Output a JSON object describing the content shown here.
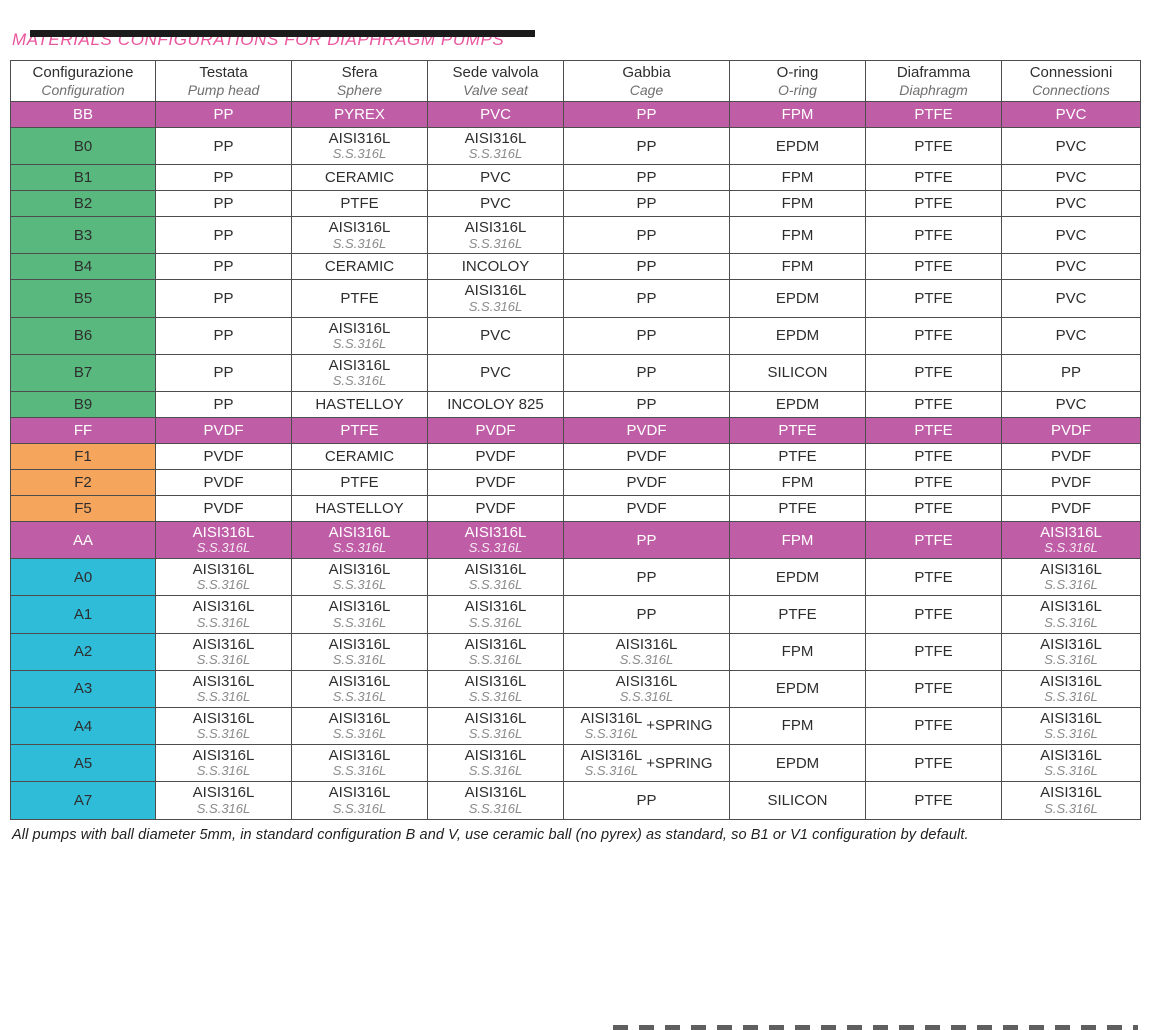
{
  "page": {
    "title": "MATERIALS CONFIGURATIONS FOR DIAPHRAGM PUMPS",
    "footnote": "All pumps with ball diameter 5mm, in standard configuration B and V, use ceramic ball (no pyrex) as standard, so B1 or V1 configuration by default."
  },
  "colors": {
    "title_pink": "#e9579d",
    "magenta_row": "#bf5ea7",
    "green": "#58b87d",
    "orange": "#f6a55c",
    "cyan": "#2fbcd9",
    "border": "#4d4d4d",
    "subtext": "#8a8a8a"
  },
  "table": {
    "columns": [
      {
        "it": "Configurazione",
        "en": "Configuration"
      },
      {
        "it": "Testata",
        "en": "Pump head"
      },
      {
        "it": "Sfera",
        "en": "Sphere"
      },
      {
        "it": "Sede valvola",
        "en": "Valve seat"
      },
      {
        "it": "Gabbia",
        "en": "Cage"
      },
      {
        "it": "O-ring",
        "en": "O-ring"
      },
      {
        "it": "Diaframma",
        "en": "Diaphragm"
      },
      {
        "it": "Connessioni",
        "en": "Connections"
      }
    ],
    "rows": [
      {
        "config": "BB",
        "style": "magenta",
        "cells": [
          {
            "t": "PP"
          },
          {
            "t": "PYREX"
          },
          {
            "t": "PVC"
          },
          {
            "t": "PP"
          },
          {
            "t": "FPM"
          },
          {
            "t": "PTFE"
          },
          {
            "t": "PVC"
          }
        ]
      },
      {
        "config": "B0",
        "style": "green",
        "cells": [
          {
            "t": "PP"
          },
          {
            "t": "AISI316L",
            "s": "S.S.316L"
          },
          {
            "t": "AISI316L",
            "s": "S.S.316L"
          },
          {
            "t": "PP"
          },
          {
            "t": "EPDM"
          },
          {
            "t": "PTFE"
          },
          {
            "t": "PVC"
          }
        ]
      },
      {
        "config": "B1",
        "style": "green",
        "cells": [
          {
            "t": "PP"
          },
          {
            "t": "CERAMIC"
          },
          {
            "t": "PVC"
          },
          {
            "t": "PP"
          },
          {
            "t": "FPM"
          },
          {
            "t": "PTFE"
          },
          {
            "t": "PVC"
          }
        ]
      },
      {
        "config": "B2",
        "style": "green",
        "cells": [
          {
            "t": "PP"
          },
          {
            "t": "PTFE"
          },
          {
            "t": "PVC"
          },
          {
            "t": "PP"
          },
          {
            "t": "FPM"
          },
          {
            "t": "PTFE"
          },
          {
            "t": "PVC"
          }
        ]
      },
      {
        "config": "B3",
        "style": "green",
        "cells": [
          {
            "t": "PP"
          },
          {
            "t": "AISI316L",
            "s": "S.S.316L"
          },
          {
            "t": "AISI316L",
            "s": "S.S.316L"
          },
          {
            "t": "PP"
          },
          {
            "t": "FPM"
          },
          {
            "t": "PTFE"
          },
          {
            "t": "PVC"
          }
        ]
      },
      {
        "config": "B4",
        "style": "green",
        "cells": [
          {
            "t": "PP"
          },
          {
            "t": "CERAMIC"
          },
          {
            "t": "INCOLOY"
          },
          {
            "t": "PP"
          },
          {
            "t": "FPM"
          },
          {
            "t": "PTFE"
          },
          {
            "t": "PVC"
          }
        ]
      },
      {
        "config": "B5",
        "style": "green",
        "cells": [
          {
            "t": "PP"
          },
          {
            "t": "PTFE"
          },
          {
            "t": "AISI316L",
            "s": "S.S.316L"
          },
          {
            "t": "PP"
          },
          {
            "t": "EPDM"
          },
          {
            "t": "PTFE"
          },
          {
            "t": "PVC"
          }
        ]
      },
      {
        "config": "B6",
        "style": "green",
        "cells": [
          {
            "t": "PP"
          },
          {
            "t": "AISI316L",
            "s": "S.S.316L"
          },
          {
            "t": "PVC"
          },
          {
            "t": "PP"
          },
          {
            "t": "EPDM"
          },
          {
            "t": "PTFE"
          },
          {
            "t": "PVC"
          }
        ]
      },
      {
        "config": "B7",
        "style": "green",
        "cells": [
          {
            "t": "PP"
          },
          {
            "t": "AISI316L",
            "s": "S.S.316L"
          },
          {
            "t": "PVC"
          },
          {
            "t": "PP"
          },
          {
            "t": "SILICON"
          },
          {
            "t": "PTFE"
          },
          {
            "t": "PP"
          }
        ]
      },
      {
        "config": "B9",
        "style": "green",
        "cells": [
          {
            "t": "PP"
          },
          {
            "t": "HASTELLOY"
          },
          {
            "t": "INCOLOY 825"
          },
          {
            "t": "PP"
          },
          {
            "t": "EPDM"
          },
          {
            "t": "PTFE"
          },
          {
            "t": "PVC"
          }
        ]
      },
      {
        "config": "FF",
        "style": "magenta",
        "cells": [
          {
            "t": "PVDF"
          },
          {
            "t": "PTFE"
          },
          {
            "t": "PVDF"
          },
          {
            "t": "PVDF"
          },
          {
            "t": "PTFE"
          },
          {
            "t": "PTFE"
          },
          {
            "t": "PVDF"
          }
        ]
      },
      {
        "config": "F1",
        "style": "orange",
        "cells": [
          {
            "t": "PVDF"
          },
          {
            "t": "CERAMIC"
          },
          {
            "t": "PVDF"
          },
          {
            "t": "PVDF"
          },
          {
            "t": "PTFE"
          },
          {
            "t": "PTFE"
          },
          {
            "t": "PVDF"
          }
        ]
      },
      {
        "config": "F2",
        "style": "orange",
        "cells": [
          {
            "t": "PVDF"
          },
          {
            "t": "PTFE"
          },
          {
            "t": "PVDF"
          },
          {
            "t": "PVDF"
          },
          {
            "t": "FPM"
          },
          {
            "t": "PTFE"
          },
          {
            "t": "PVDF"
          }
        ]
      },
      {
        "config": "F5",
        "style": "orange",
        "cells": [
          {
            "t": "PVDF"
          },
          {
            "t": "HASTELLOY"
          },
          {
            "t": "PVDF"
          },
          {
            "t": "PVDF"
          },
          {
            "t": "PTFE"
          },
          {
            "t": "PTFE"
          },
          {
            "t": "PVDF"
          }
        ]
      },
      {
        "config": "AA",
        "style": "magenta",
        "cells": [
          {
            "t": "AISI316L",
            "s": "S.S.316L"
          },
          {
            "t": "AISI316L",
            "s": "S.S.316L"
          },
          {
            "t": "AISI316L",
            "s": "S.S.316L"
          },
          {
            "t": "PP"
          },
          {
            "t": "FPM"
          },
          {
            "t": "PTFE"
          },
          {
            "t": "AISI316L",
            "s": "S.S.316L"
          }
        ]
      },
      {
        "config": "A0",
        "style": "cyan",
        "cells": [
          {
            "t": "AISI316L",
            "s": "S.S.316L"
          },
          {
            "t": "AISI316L",
            "s": "S.S.316L"
          },
          {
            "t": "AISI316L",
            "s": "S.S.316L"
          },
          {
            "t": "PP"
          },
          {
            "t": "EPDM"
          },
          {
            "t": "PTFE"
          },
          {
            "t": "AISI316L",
            "s": "S.S.316L"
          }
        ]
      },
      {
        "config": "A1",
        "style": "cyan",
        "cells": [
          {
            "t": "AISI316L",
            "s": "S.S.316L"
          },
          {
            "t": "AISI316L",
            "s": "S.S.316L"
          },
          {
            "t": "AISI316L",
            "s": "S.S.316L"
          },
          {
            "t": "PP"
          },
          {
            "t": "PTFE"
          },
          {
            "t": "PTFE"
          },
          {
            "t": "AISI316L",
            "s": "S.S.316L"
          }
        ]
      },
      {
        "config": "A2",
        "style": "cyan",
        "cells": [
          {
            "t": "AISI316L",
            "s": "S.S.316L"
          },
          {
            "t": "AISI316L",
            "s": "S.S.316L"
          },
          {
            "t": "AISI316L",
            "s": "S.S.316L"
          },
          {
            "t": "AISI316L",
            "s": "S.S.316L"
          },
          {
            "t": "FPM"
          },
          {
            "t": "PTFE"
          },
          {
            "t": "AISI316L",
            "s": "S.S.316L"
          }
        ]
      },
      {
        "config": "A3",
        "style": "cyan",
        "cells": [
          {
            "t": "AISI316L",
            "s": "S.S.316L"
          },
          {
            "t": "AISI316L",
            "s": "S.S.316L"
          },
          {
            "t": "AISI316L",
            "s": "S.S.316L"
          },
          {
            "t": "AISI316L",
            "s": "S.S.316L"
          },
          {
            "t": "EPDM"
          },
          {
            "t": "PTFE"
          },
          {
            "t": "AISI316L",
            "s": "S.S.316L"
          }
        ]
      },
      {
        "config": "A4",
        "style": "cyan",
        "cells": [
          {
            "t": "AISI316L",
            "s": "S.S.316L"
          },
          {
            "t": "AISI316L",
            "s": "S.S.316L"
          },
          {
            "t": "AISI316L",
            "s": "S.S.316L"
          },
          {
            "t": "AISI316L",
            "s": "S.S.316L",
            "x": "+SPRING"
          },
          {
            "t": "FPM"
          },
          {
            "t": "PTFE"
          },
          {
            "t": "AISI316L",
            "s": "S.S.316L"
          }
        ]
      },
      {
        "config": "A5",
        "style": "cyan",
        "cells": [
          {
            "t": "AISI316L",
            "s": "S.S.316L"
          },
          {
            "t": "AISI316L",
            "s": "S.S.316L"
          },
          {
            "t": "AISI316L",
            "s": "S.S.316L"
          },
          {
            "t": "AISI316L",
            "s": "S.S.316L",
            "x": "+SPRING"
          },
          {
            "t": "EPDM"
          },
          {
            "t": "PTFE"
          },
          {
            "t": "AISI316L",
            "s": "S.S.316L"
          }
        ]
      },
      {
        "config": "A7",
        "style": "cyan",
        "cells": [
          {
            "t": "AISI316L",
            "s": "S.S.316L"
          },
          {
            "t": "AISI316L",
            "s": "S.S.316L"
          },
          {
            "t": "AISI316L",
            "s": "S.S.316L"
          },
          {
            "t": "PP"
          },
          {
            "t": "SILICON"
          },
          {
            "t": "PTFE"
          },
          {
            "t": "AISI316L",
            "s": "S.S.316L"
          }
        ]
      }
    ]
  }
}
